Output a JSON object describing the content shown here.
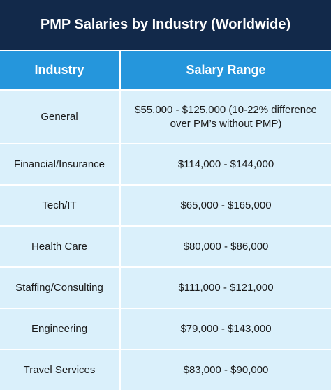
{
  "title": "PMP Salaries by Industry (Worldwide)",
  "headers": {
    "industry": "Industry",
    "salary": "Salary Range"
  },
  "rows": [
    {
      "industry": "General",
      "salary": "$55,000 - $125,000 (10-22% difference over PM’s without PMP)"
    },
    {
      "industry": "Financial/Insurance",
      "salary": "$114,000 - $144,000"
    },
    {
      "industry": "Tech/IT",
      "salary": "$65,000 - $165,000"
    },
    {
      "industry": "Health Care",
      "salary": "$80,000 - $86,000"
    },
    {
      "industry": "Staffing/Consulting",
      "salary": "$111,000 - $121,000"
    },
    {
      "industry": "Engineering",
      "salary": "$79,000 - $143,000"
    },
    {
      "industry": "Travel Services",
      "salary": "$83,000 - $90,000"
    }
  ],
  "colors": {
    "title_bg": "#12294a",
    "header_bg": "#2596dc",
    "cell_bg": "#daf0fb"
  }
}
